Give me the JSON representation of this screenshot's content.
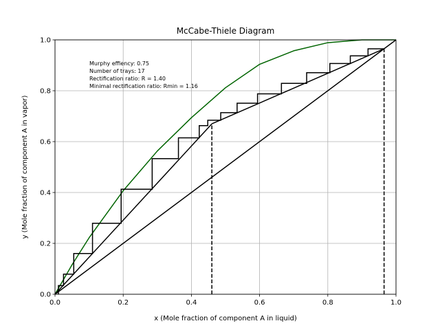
{
  "chart_data": {
    "type": "line",
    "title": "McCabe-Thiele Diagram",
    "xlabel": "x (Mole fraction of component A in liquid)",
    "ylabel": "y (Mole fraction of component A in vapor)",
    "xlim": [
      0.0,
      1.0
    ],
    "ylim": [
      0.0,
      1.0
    ],
    "xticks": [
      "0.0",
      "0.2",
      "0.4",
      "0.6",
      "0.8",
      "1.0"
    ],
    "yticks": [
      "0.0",
      "0.2",
      "0.4",
      "0.6",
      "0.8",
      "1.0"
    ],
    "grid": true,
    "annotations": [
      "Murphy effiency: 0.75",
      "Number of trays: 17",
      "Rectification ratio: R = 1.40",
      "Minimal rectification ratio: Rmin = 1.16"
    ],
    "colors": {
      "equilibrium": "#006400",
      "lines": "#000000",
      "grid": "#b0b0b0"
    },
    "series": [
      {
        "x": [
          0.0,
          0.05,
          0.1,
          0.2,
          0.3,
          0.4,
          0.5,
          0.6,
          0.7,
          0.8,
          0.9,
          1.0
        ],
        "y": [
          0.0,
          0.116,
          0.222,
          0.407,
          0.563,
          0.694,
          0.812,
          0.904,
          0.957,
          0.989,
          1.0,
          1.0
        ]
      },
      {
        "x": [
          0.0,
          1.0
        ],
        "y": [
          0.0,
          1.0
        ]
      },
      {
        "x": [
          0.965,
          0.46
        ],
        "y": [
          0.965,
          0.67
        ]
      },
      {
        "x": [
          0.46,
          0.0
        ],
        "y": [
          0.67,
          0.0
        ]
      },
      {
        "x": [
          0.46,
          0.46,
          0.965,
          0.965
        ],
        "y": [
          0.0,
          0.67,
          0.965,
          0.0
        ]
      }
    ],
    "steps": {
      "x": [
        0.965,
        0.918,
        0.918,
        0.866,
        0.866,
        0.806,
        0.806,
        0.738,
        0.738,
        0.664,
        0.664,
        0.594,
        0.594,
        0.534,
        0.534,
        0.486,
        0.486,
        0.448,
        0.448,
        0.423,
        0.423,
        0.362,
        0.362,
        0.285,
        0.285,
        0.194,
        0.194,
        0.11,
        0.11,
        0.055,
        0.055,
        0.025,
        0.025,
        0.01,
        0.01
      ],
      "y": [
        0.965,
        0.965,
        0.937,
        0.937,
        0.907,
        0.907,
        0.871,
        0.871,
        0.829,
        0.829,
        0.788,
        0.788,
        0.751,
        0.751,
        0.714,
        0.714,
        0.684,
        0.684,
        0.663,
        0.663,
        0.615,
        0.615,
        0.533,
        0.533,
        0.413,
        0.413,
        0.279,
        0.279,
        0.16,
        0.16,
        0.079,
        0.079,
        0.034,
        0.034,
        0.0
      ]
    }
  }
}
